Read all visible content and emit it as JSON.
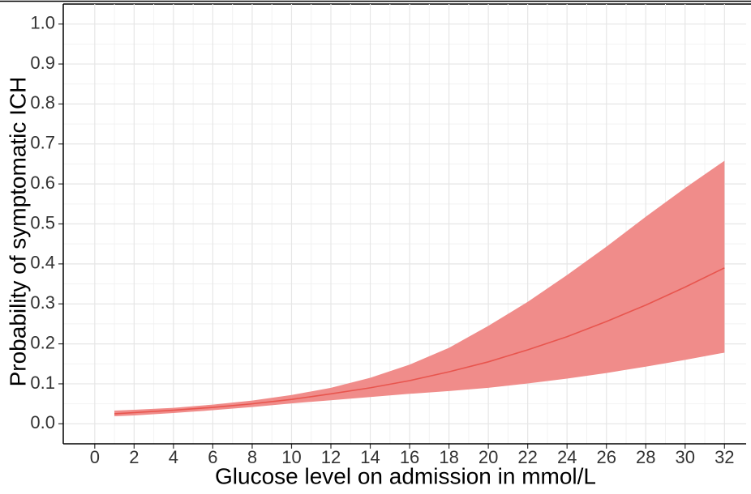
{
  "chart_data": {
    "type": "line",
    "x_label": "Glucose level on admission in mmol/L",
    "y_label": "Probability of symptomatic ICH",
    "x": [
      1,
      2,
      4,
      6,
      8,
      10,
      12,
      14,
      16,
      18,
      20,
      22,
      24,
      26,
      28,
      30,
      32
    ],
    "values": [
      0.025,
      0.028,
      0.034,
      0.041,
      0.05,
      0.061,
      0.075,
      0.09,
      0.108,
      0.13,
      0.155,
      0.185,
      0.218,
      0.256,
      0.297,
      0.342,
      0.39
    ],
    "lower": [
      0.019,
      0.021,
      0.027,
      0.034,
      0.042,
      0.051,
      0.059,
      0.067,
      0.075,
      0.082,
      0.09,
      0.101,
      0.113,
      0.127,
      0.143,
      0.16,
      0.178
    ],
    "upper": [
      0.033,
      0.035,
      0.04,
      0.048,
      0.058,
      0.072,
      0.09,
      0.115,
      0.148,
      0.19,
      0.245,
      0.305,
      0.372,
      0.443,
      0.518,
      0.59,
      0.658
    ],
    "color": "#e8554e",
    "band_color": "#f08c8a",
    "xlim": [
      -1.6,
      33.1
    ],
    "ylim": [
      -0.05,
      1.05
    ],
    "xticks": [
      0,
      2,
      4,
      6,
      8,
      10,
      12,
      14,
      16,
      18,
      20,
      22,
      24,
      26,
      28,
      30,
      32
    ],
    "yticks": [
      {
        "value": 0,
        "label": "0.0"
      },
      0.1,
      0.2,
      0.3,
      0.4,
      0.5,
      0.6,
      0.7,
      0.8,
      0.9,
      {
        "value": 1,
        "label": "1.0"
      }
    ],
    "grid": true
  }
}
